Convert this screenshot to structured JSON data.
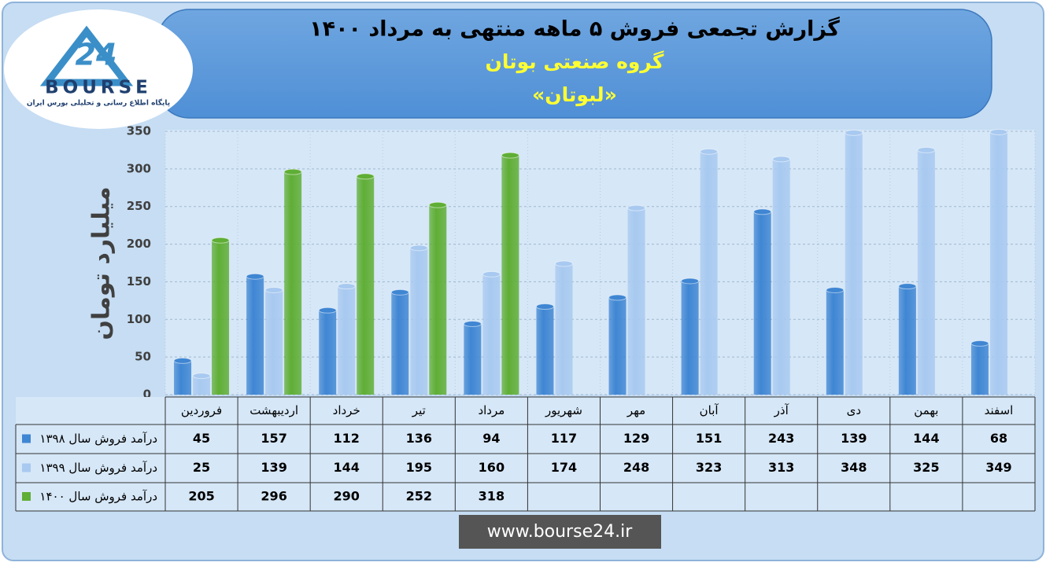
{
  "logo": {
    "number": "24",
    "name": "BOURSE",
    "tagline": "پایگاه اطلاع رسانی و تحلیلی بورس ایران"
  },
  "footer": "www.bourse24.ir",
  "chart_data": {
    "type": "bar",
    "title": "گزارش تجمعی فروش ۵ ماهه منتهی به مرداد ۱۴۰۰",
    "subtitle": "گروه صنعتی بوتان",
    "symbol": "«لبوتان»",
    "y_label": "میلیارد تومان",
    "categories": [
      "فروردین",
      "اردیبهشت",
      "خرداد",
      "تیر",
      "مرداد",
      "شهریور",
      "مهر",
      "آبان",
      "آذر",
      "دی",
      "بهمن",
      "اسفند"
    ],
    "series": [
      {
        "name": "درآمد فروش سال ۱۳۹۸",
        "color": "#3f86d3",
        "values": [
          45,
          157,
          112,
          136,
          94,
          117,
          129,
          151,
          243,
          139,
          144,
          68
        ]
      },
      {
        "name": "درآمد فروش سال ۱۳۹۹",
        "color": "#a8c9f0",
        "values": [
          25,
          139,
          144,
          195,
          160,
          174,
          248,
          323,
          313,
          348,
          325,
          349
        ]
      },
      {
        "name": "درآمد فروش سال ۱۴۰۰",
        "color": "#5fae35",
        "values": [
          205,
          296,
          290,
          252,
          318,
          null,
          null,
          null,
          null,
          null,
          null,
          null
        ]
      }
    ],
    "ylim": [
      0,
      350
    ],
    "yticks": [
      0,
      50,
      100,
      150,
      200,
      250,
      300,
      350
    ],
    "grid": true
  }
}
